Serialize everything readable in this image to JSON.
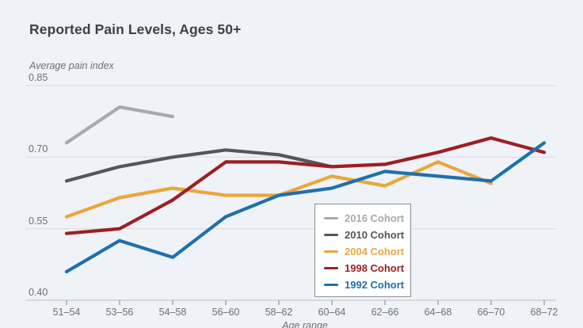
{
  "title": "Reported Pain Levels, Ages 50+",
  "colors": {
    "background": "#eff2f6",
    "gridline": "#d9dde2",
    "axis_line": "#c3c8ce",
    "tick_mark": "#8f959b",
    "title_text": "#3a414b",
    "axis_text": "#6b7178",
    "legend_background": "#ffffff",
    "legend_border": "#8b9095"
  },
  "legend": {
    "items": [
      "2016 Cohort",
      "2010 Cohort",
      "2004 Cohort",
      "1998 Cohort",
      "1992 Cohort"
    ]
  },
  "chart_data": {
    "type": "line",
    "title": "Reported Pain Levels, Ages 50+",
    "xlabel": "Age range",
    "ylabel": "Average pain index",
    "categories": [
      "51–54",
      "53–56",
      "54–58",
      "56–60",
      "58–62",
      "60–64",
      "62–66",
      "64–68",
      "66–70",
      "68–72"
    ],
    "y_ticks": [
      0.85,
      0.7,
      0.55,
      0.4
    ],
    "y_tick_labels": [
      "0.85",
      "0.70",
      "0.55",
      "0.40"
    ],
    "ylim": [
      0.4,
      0.85
    ],
    "grid": true,
    "legend_position": "inside-bottom-center-box",
    "series": [
      {
        "name": "2016 Cohort",
        "color": "#a7a9ac",
        "values": [
          0.73,
          0.805,
          0.785,
          null,
          null,
          null,
          null,
          null,
          null,
          null
        ]
      },
      {
        "name": "2010 Cohort",
        "color": "#54565a",
        "values": [
          0.65,
          0.68,
          0.7,
          0.715,
          0.705,
          0.68,
          null,
          null,
          null,
          null
        ]
      },
      {
        "name": "2004 Cohort",
        "color": "#e9a63d",
        "values": [
          0.575,
          0.615,
          0.635,
          0.62,
          0.62,
          0.66,
          0.64,
          0.69,
          0.645,
          null
        ]
      },
      {
        "name": "1998 Cohort",
        "color": "#9c1f24",
        "values": [
          0.54,
          0.55,
          0.61,
          0.69,
          0.69,
          0.68,
          0.685,
          0.71,
          0.74,
          0.71
        ]
      },
      {
        "name": "1992 Cohort",
        "color": "#1f70ad",
        "values": [
          0.46,
          0.525,
          0.49,
          0.575,
          0.62,
          0.635,
          0.67,
          0.66,
          0.65,
          0.73
        ]
      }
    ]
  }
}
